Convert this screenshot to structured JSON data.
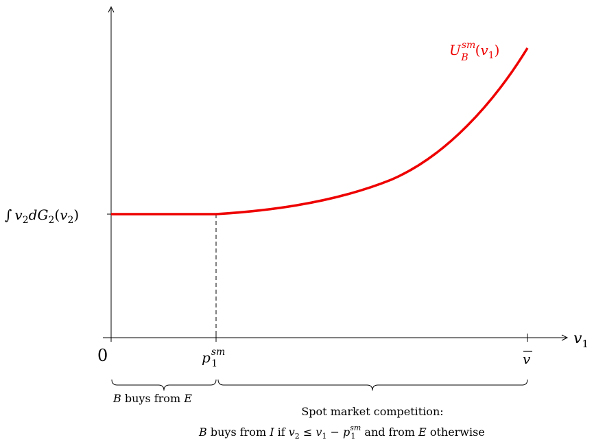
{
  "diagram": {
    "axes": {
      "x_label": "v",
      "x_label_sub": "1",
      "origin_label": "0"
    },
    "y_tick": {
      "integral": "∫",
      "v": "v",
      "v_sub": "2",
      "d": "d",
      "G": "G",
      "G_sub": "2",
      "open": "(",
      "close": ")"
    },
    "x_ticks": {
      "p_base": "p",
      "p_sub": "1",
      "p_sup": "sm",
      "vbar": "v"
    },
    "curve_label": {
      "base": "U",
      "sub": "B",
      "sup": "sm",
      "arg_open": "(",
      "arg_v": "v",
      "arg_sub": "1",
      "arg_close": ")"
    },
    "annotations": {
      "left_brace": {
        "B": "B",
        "text": " buys from ",
        "E": "E"
      },
      "right_brace_line1": "Spot market competition:",
      "right_brace_line2": {
        "B": "B",
        "t1": " buys from ",
        "I": "I",
        "t2": " if ",
        "v2": "v",
        "v2_sub": "2",
        "le": " ≤ ",
        "v1": "v",
        "v1_sub": "1",
        "minus": " − ",
        "p": "p",
        "p_sub": "1",
        "p_sup": "sm",
        "t3": " and from ",
        "E": "E",
        "t4": " otherwise"
      }
    },
    "colors": {
      "curve": "#ee0000",
      "axis": "#000000"
    }
  }
}
